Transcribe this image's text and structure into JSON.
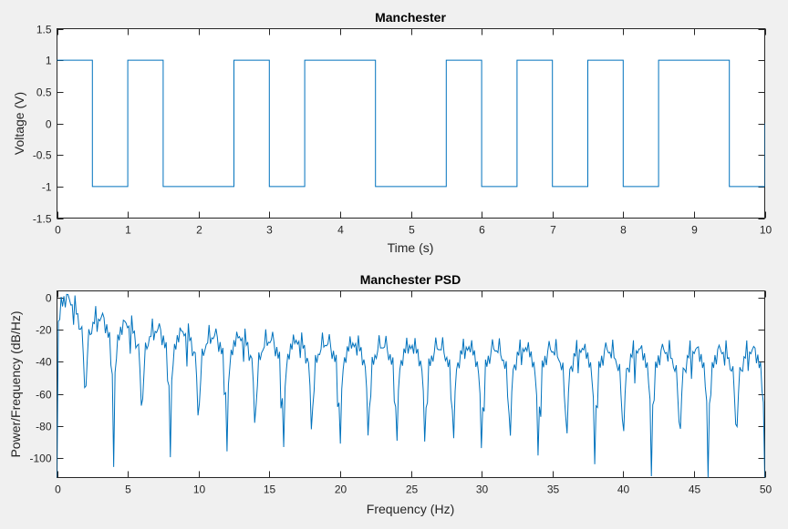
{
  "colors": {
    "background": "#f0f0f0",
    "axes": "#ffffff",
    "line": "#0072bd",
    "axis": "#262626"
  },
  "chart_data": [
    {
      "type": "line",
      "title": "Manchester",
      "xlabel": "Time (s)",
      "ylabel": "Voltage (V)",
      "xlim": [
        0,
        10
      ],
      "ylim": [
        -1.5,
        1.5
      ],
      "xticks": [
        0,
        1,
        2,
        3,
        4,
        5,
        6,
        7,
        8,
        9,
        10
      ],
      "yticks": [
        -1.5,
        -1,
        -0.5,
        0,
        0.5,
        1,
        1.5
      ],
      "grid": false,
      "legend": null,
      "step": true,
      "bits": [
        1,
        0,
        0,
        1,
        1,
        0,
        1,
        1,
        1,
        0
      ],
      "series": [
        {
          "x": [
            0,
            0.5,
            0.5,
            1,
            1,
            1.5,
            1.5,
            2.5,
            2.5,
            3,
            3,
            3.5,
            3.5,
            4.5,
            4.5,
            5.5,
            5.5,
            6,
            6,
            6.5,
            6.5,
            7,
            7,
            7.5,
            7.5,
            8,
            8,
            8.5,
            8.5,
            9.5,
            9.5,
            10,
            10
          ],
          "y": [
            1,
            1,
            -1,
            -1,
            1,
            1,
            -1,
            -1,
            1,
            1,
            -1,
            -1,
            1,
            1,
            -1,
            -1,
            1,
            1,
            -1,
            -1,
            1,
            1,
            -1,
            -1,
            1,
            1,
            -1,
            -1,
            1,
            1,
            -1,
            -1,
            0
          ]
        }
      ]
    },
    {
      "type": "line",
      "title": "Manchester PSD",
      "xlabel": "Frequency (Hz)",
      "ylabel": "Power/Frequency (dB/Hz)",
      "xlim": [
        0,
        50
      ],
      "ylim": [
        -112,
        4
      ],
      "xticks": [
        0,
        5,
        10,
        15,
        20,
        25,
        30,
        35,
        40,
        45,
        50
      ],
      "yticks": [
        -100,
        -80,
        -60,
        -40,
        -20,
        0
      ],
      "grid": false,
      "legend": null,
      "sample_rate_hz": 100,
      "samples": 1000,
      "nfft": 1024
    }
  ]
}
